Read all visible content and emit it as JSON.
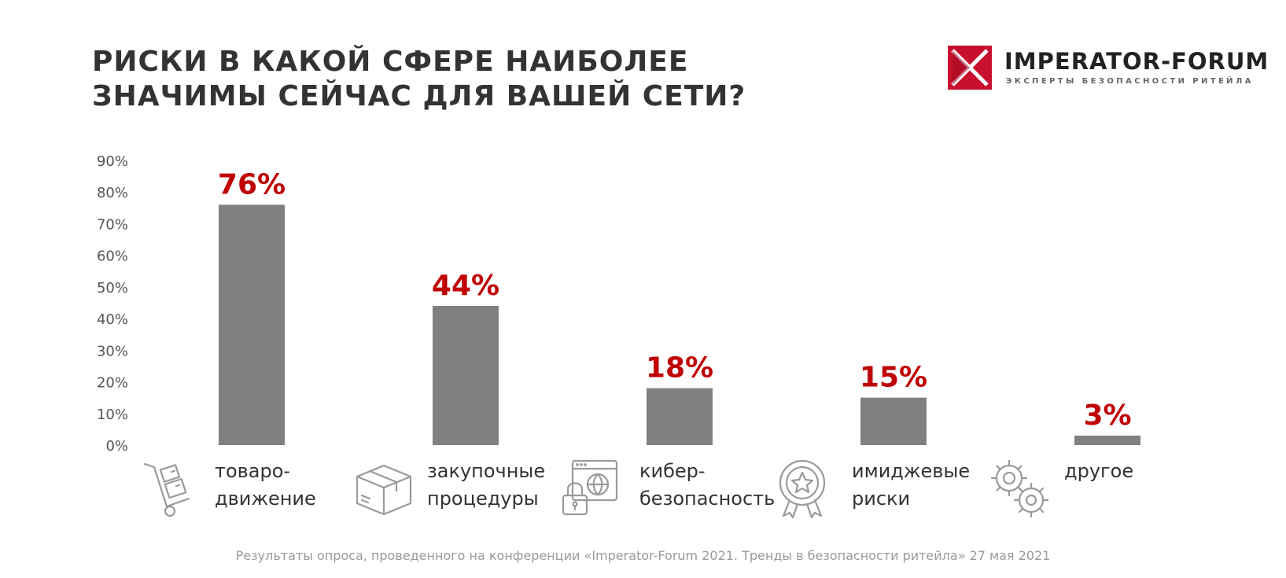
{
  "title_lines": [
    "РИСКИ В КАКОЙ СФЕРЕ НАИБОЛЕЕ",
    "ЗНАЧИМЫ СЕЙЧАС ДЛЯ ВАШЕЙ СЕТИ?"
  ],
  "logo": {
    "name": "IMPERATOR-FORUM",
    "tagline": "ЭКСПЕРТЫ БЕЗОПАСНОСТИ РИТЕЙЛА",
    "brand_color": "#C8102E"
  },
  "colors": {
    "bar": "#808080",
    "value_label": "#C00000",
    "axis_text": "#555555",
    "footnote": "#9a9a9a"
  },
  "chart_data": {
    "type": "bar",
    "title": "РИСКИ В КАКОЙ СФЕРЕ НАИБОЛЕЕ ЗНАЧИМЫ СЕЙЧАС ДЛЯ ВАШЕЙ СЕТИ?",
    "categories": [
      [
        "товаро-",
        "движение"
      ],
      [
        "закупочные",
        "процедуры"
      ],
      [
        "кибер-",
        "безопасность"
      ],
      [
        "имиджевые",
        "риски"
      ],
      [
        "другое"
      ]
    ],
    "values": [
      76,
      44,
      18,
      15,
      3
    ],
    "value_labels": [
      "76%",
      "44%",
      "18%",
      "15%",
      "3%"
    ],
    "category_icons": [
      "hand-truck-icon",
      "box-icon",
      "cyber-lock-icon",
      "award-star-icon",
      "gears-icon"
    ],
    "ylim": [
      0,
      90
    ],
    "yticks": [
      "0%",
      "10%",
      "20%",
      "30%",
      "40%",
      "50%",
      "60%",
      "70%",
      "80%",
      "90%"
    ],
    "grid": false,
    "legend": "none"
  },
  "footnote": "Результаты опроса, проведенного на конференции «Imperator-Forum 2021. Тренды в безопасности ритейла» 27 мая 2021"
}
